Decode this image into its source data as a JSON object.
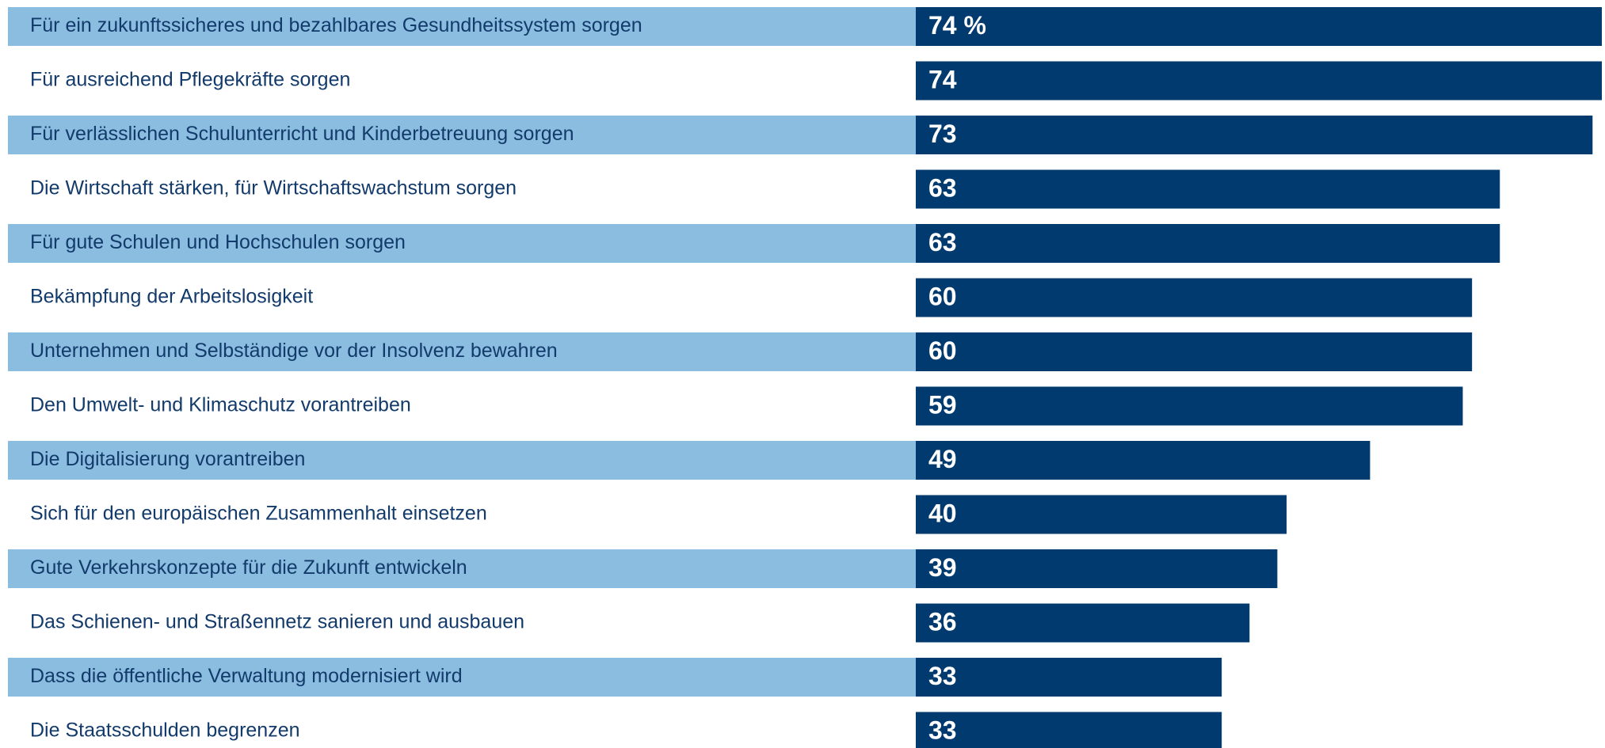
{
  "chart_data": {
    "type": "bar",
    "orientation": "horizontal",
    "categories": [
      "Für ein zukunftssicheres und bezahlbares Gesundheitssystem sorgen",
      "Für ausreichend Pflegekräfte sorgen",
      "Für verlässlichen Schulunterricht und Kinderbetreuung sorgen",
      "Die Wirtschaft stärken, für Wirtschaftswachstum sorgen",
      "Für gute Schulen und Hochschulen sorgen",
      "Bekämpfung der Arbeitslosigkeit",
      "Unternehmen und Selbständige vor der Insolvenz bewahren",
      "Den Umwelt- und Klimaschutz vorantreiben",
      "Die Digitalisierung vorantreiben",
      "Sich für den europäischen Zusammenhalt einsetzen",
      "Gute Verkehrskonzepte für die Zukunft entwickeln",
      "Das Schienen- und Straßennetz sanieren und ausbauen",
      "Dass die öffentliche Verwaltung modernisiert wird",
      "Die Staatsschulden begrenzen"
    ],
    "values": [
      74,
      74,
      73,
      63,
      63,
      60,
      60,
      59,
      49,
      40,
      39,
      36,
      33,
      33
    ],
    "value_labels": [
      "74 %",
      "74",
      "73",
      "63",
      "63",
      "60",
      "60",
      "59",
      "49",
      "40",
      "39",
      "36",
      "33",
      "33"
    ],
    "color": "#003a6e",
    "band_color": "#8bbde0",
    "xlim": [
      0,
      74
    ]
  }
}
